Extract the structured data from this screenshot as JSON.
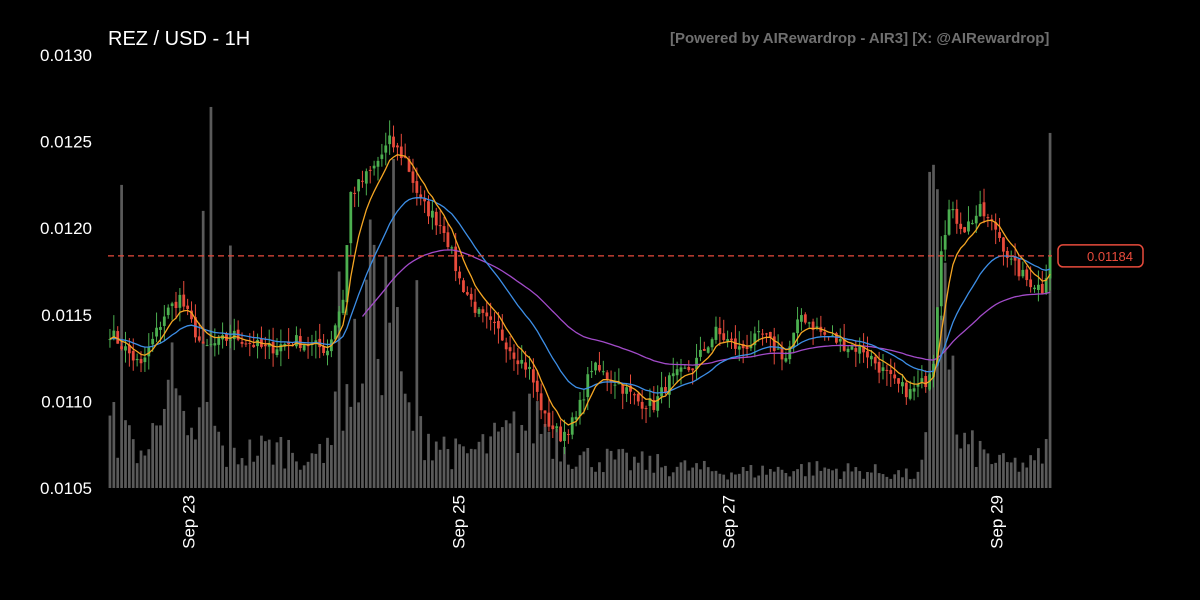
{
  "chart_data": {
    "type": "candlestick",
    "title": "REZ / USD - 1H",
    "credit": "[Powered by AIRewardrop - AIR3] [X: @AIRewardrop]",
    "ylim": [
      0.0105,
      0.013
    ],
    "y_ticks": [
      "0.0130",
      "0.0125",
      "0.0120",
      "0.0115",
      "0.0110",
      "0.0105"
    ],
    "x_ticks": [
      "Sep 23",
      "Sep 25",
      "Sep 27",
      "Sep 29"
    ],
    "current_price": 0.01184,
    "current_price_label": "0.01184",
    "colors": {
      "up": "#4caf50",
      "down": "#e84b3c",
      "ma_fast": "#f5a623",
      "ma_mid": "#3d8ee6",
      "ma_slow": "#a24bc9",
      "volume": "#6a6a6a",
      "price_line": "#e84b3c"
    },
    "anchors": [
      [
        0,
        0.0114
      ],
      [
        8,
        0.0112
      ],
      [
        14,
        0.0115
      ],
      [
        18,
        0.0116
      ],
      [
        24,
        0.0113
      ],
      [
        32,
        0.01138
      ],
      [
        40,
        0.0113
      ],
      [
        48,
        0.01135
      ],
      [
        56,
        0.0113
      ],
      [
        60,
        0.0116
      ],
      [
        62,
        0.0122
      ],
      [
        68,
        0.01235
      ],
      [
        72,
        0.0125
      ],
      [
        76,
        0.0124
      ],
      [
        80,
        0.01215
      ],
      [
        86,
        0.012
      ],
      [
        90,
        0.0117
      ],
      [
        95,
        0.0115
      ],
      [
        100,
        0.0114
      ],
      [
        104,
        0.01128
      ],
      [
        108,
        0.01118
      ],
      [
        112,
        0.0109
      ],
      [
        116,
        0.0108
      ],
      [
        120,
        0.0109
      ],
      [
        124,
        0.0112
      ],
      [
        130,
        0.01112
      ],
      [
        136,
        0.011
      ],
      [
        140,
        0.01098
      ],
      [
        144,
        0.01112
      ],
      [
        150,
        0.0112
      ],
      [
        156,
        0.0114
      ],
      [
        162,
        0.0113
      ],
      [
        168,
        0.01138
      ],
      [
        174,
        0.01125
      ],
      [
        178,
        0.0115
      ],
      [
        184,
        0.01138
      ],
      [
        190,
        0.01132
      ],
      [
        194,
        0.0113
      ],
      [
        198,
        0.0112
      ],
      [
        202,
        0.0111
      ],
      [
        206,
        0.01105
      ],
      [
        210,
        0.01112
      ],
      [
        212,
        0.01125
      ],
      [
        214,
        0.0119
      ],
      [
        216,
        0.0121
      ],
      [
        220,
        0.012
      ],
      [
        224,
        0.0121
      ],
      [
        228,
        0.012
      ],
      [
        232,
        0.0118
      ],
      [
        236,
        0.0117
      ],
      [
        238,
        0.01168
      ],
      [
        240,
        0.01165
      ],
      [
        242,
        0.01184
      ]
    ],
    "volume_anchors": [
      [
        0,
        0.16
      ],
      [
        10,
        0.08
      ],
      [
        14,
        0.34
      ],
      [
        20,
        0.1
      ],
      [
        24,
        0.2
      ],
      [
        30,
        0.08
      ],
      [
        40,
        0.1
      ],
      [
        48,
        0.1
      ],
      [
        52,
        0.06
      ],
      [
        56,
        0.14
      ],
      [
        60,
        0.2
      ],
      [
        66,
        0.4
      ],
      [
        70,
        0.44
      ],
      [
        72,
        0.46
      ],
      [
        76,
        0.2
      ],
      [
        80,
        0.15
      ],
      [
        90,
        0.08
      ],
      [
        100,
        0.12
      ],
      [
        110,
        0.18
      ],
      [
        120,
        0.08
      ],
      [
        140,
        0.06
      ],
      [
        160,
        0.04
      ],
      [
        180,
        0.05
      ],
      [
        200,
        0.04
      ],
      [
        208,
        0.03
      ],
      [
        210,
        0.1
      ],
      [
        212,
        0.6
      ],
      [
        215,
        0.58
      ],
      [
        218,
        0.12
      ],
      [
        222,
        0.1
      ],
      [
        230,
        0.06
      ],
      [
        238,
        0.06
      ],
      [
        241,
        0.1
      ],
      [
        242,
        0.82
      ]
    ],
    "volume_spikes": [
      [
        26,
        0.88
      ],
      [
        24,
        0.64
      ],
      [
        31,
        0.56
      ],
      [
        3,
        0.7
      ],
      [
        59,
        0.5
      ],
      [
        67,
        0.62
      ],
      [
        73,
        0.76
      ],
      [
        79,
        0.48
      ],
      [
        211,
        0.73
      ],
      [
        213,
        0.69
      ],
      [
        242,
        0.82
      ]
    ]
  }
}
